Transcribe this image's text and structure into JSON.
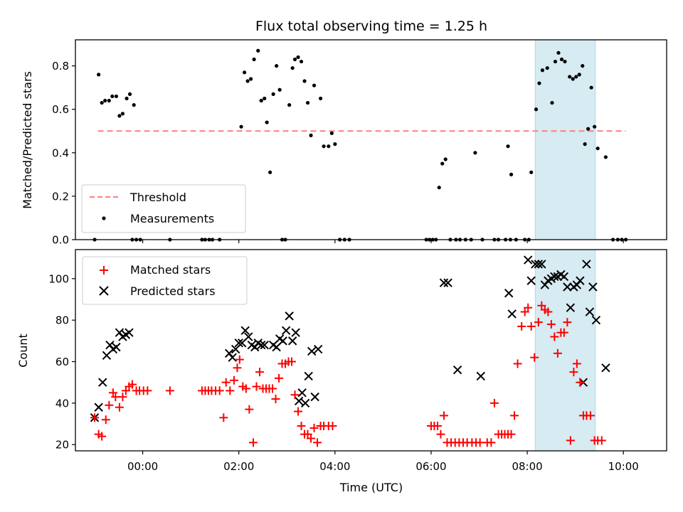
{
  "chart_data": [
    {
      "type": "scatter",
      "title": "Flux total observing time = 1.25 h",
      "ylabel": "Matched/Predicted stars",
      "xlabel": "",
      "ylim": [
        0,
        0.92
      ],
      "yticks": [
        "0.0",
        "0.2",
        "0.4",
        "0.6",
        "0.8"
      ],
      "threshold": {
        "name": "Threshold",
        "value": 0.5,
        "x_range": [
          -56,
          603
        ],
        "color": "#ff7f7f"
      },
      "shaded_span": {
        "x_range": [
          490,
          565
        ],
        "color": "#add8e6"
      },
      "legend": [
        "Threshold",
        "Measurements"
      ],
      "series": [
        {
          "name": "Measurements",
          "color": "#000000",
          "points": [
            [
              -55,
              0.76
            ],
            [
              -51,
              0.63
            ],
            [
              -47,
              0.64
            ],
            [
              -42,
              0.64
            ],
            [
              -38,
              0.66
            ],
            [
              -33,
              0.66
            ],
            [
              -29,
              0.57
            ],
            [
              -25,
              0.58
            ],
            [
              -20,
              0.65
            ],
            [
              -16,
              0.67
            ],
            [
              -11,
              0.62
            ],
            [
              123,
              0.52
            ],
            [
              127,
              0.77
            ],
            [
              131,
              0.73
            ],
            [
              135,
              0.74
            ],
            [
              139,
              0.83
            ],
            [
              144,
              0.87
            ],
            [
              148,
              0.64
            ],
            [
              152,
              0.65
            ],
            [
              155,
              0.54
            ],
            [
              159,
              0.31
            ],
            [
              163,
              0.67
            ],
            [
              167,
              0.8
            ],
            [
              171,
              0.69
            ],
            [
              183,
              0.62
            ],
            [
              187,
              0.79
            ],
            [
              190,
              0.83
            ],
            [
              194,
              0.84
            ],
            [
              198,
              0.82
            ],
            [
              202,
              0.73
            ],
            [
              206,
              0.63
            ],
            [
              210,
              0.48
            ],
            [
              214,
              0.71
            ],
            [
              222,
              0.65
            ],
            [
              226,
              0.43
            ],
            [
              232,
              0.43
            ],
            [
              236,
              0.49
            ],
            [
              240,
              0.44
            ],
            [
              370,
              0.24
            ],
            [
              374,
              0.35
            ],
            [
              378,
              0.37
            ],
            [
              415,
              0.4
            ],
            [
              456,
              0.43
            ],
            [
              460,
              0.3
            ],
            [
              485,
              0.31
            ],
            [
              491,
              0.6
            ],
            [
              495,
              0.72
            ],
            [
              499,
              0.78
            ],
            [
              505,
              0.79
            ],
            [
              511,
              0.63
            ],
            [
              515,
              0.82
            ],
            [
              519,
              0.86
            ],
            [
              523,
              0.83
            ],
            [
              527,
              0.82
            ],
            [
              533,
              0.75
            ],
            [
              537,
              0.74
            ],
            [
              541,
              0.75
            ],
            [
              545,
              0.76
            ],
            [
              549,
              0.8
            ],
            [
              552,
              0.44
            ],
            [
              556,
              0.51
            ],
            [
              560,
              0.7
            ],
            [
              564,
              0.52
            ],
            [
              568,
              0.42
            ],
            [
              578,
              0.38
            ],
            [
              -60,
              0
            ],
            [
              -13,
              0
            ],
            [
              -8,
              0
            ],
            [
              -3,
              0
            ],
            [
              34,
              0
            ],
            [
              74,
              0
            ],
            [
              78,
              0
            ],
            [
              83,
              0
            ],
            [
              87,
              0
            ],
            [
              96,
              0
            ],
            [
              174,
              0
            ],
            [
              178,
              0
            ],
            [
              246,
              0
            ],
            [
              252,
              0
            ],
            [
              258,
              0
            ],
            [
              354,
              0
            ],
            [
              358,
              0
            ],
            [
              362,
              0
            ],
            [
              366,
              0
            ],
            [
              384,
              0
            ],
            [
              391,
              0
            ],
            [
              396,
              0
            ],
            [
              403,
              0
            ],
            [
              410,
              0
            ],
            [
              424,
              0
            ],
            [
              439,
              0
            ],
            [
              444,
              0
            ],
            [
              453,
              0
            ],
            [
              459,
              0
            ],
            [
              466,
              0
            ],
            [
              477,
              0
            ],
            [
              482,
              0
            ],
            [
              587,
              0
            ],
            [
              593,
              0
            ],
            [
              598,
              0
            ],
            [
              603,
              0
            ]
          ]
        }
      ]
    },
    {
      "type": "scatter",
      "title": "",
      "ylabel": "Count",
      "xlabel": "Time (UTC)",
      "ylim": [
        17,
        114
      ],
      "yticks": [
        "20",
        "40",
        "60",
        "80",
        "100"
      ],
      "xlim": [
        -84,
        654
      ],
      "xticks": [
        "00:00",
        "02:00",
        "04:00",
        "06:00",
        "08:00",
        "10:00"
      ],
      "xtick_minutes": [
        0,
        120,
        240,
        360,
        480,
        600
      ],
      "shaded_span": {
        "x_range": [
          490,
          565
        ],
        "color": "#add8e6"
      },
      "legend": [
        "Matched stars",
        "Predicted stars"
      ],
      "series": [
        {
          "name": "Matched stars",
          "marker": "+",
          "color": "#ff0000",
          "points": [
            [
              -60,
              33
            ],
            [
              -55,
              25
            ],
            [
              -51,
              24
            ],
            [
              -46,
              32
            ],
            [
              -42,
              39
            ],
            [
              -37,
              45
            ],
            [
              -34,
              43
            ],
            [
              -29,
              38
            ],
            [
              -25,
              43
            ],
            [
              -21,
              46
            ],
            [
              -17,
              48
            ],
            [
              -13,
              49
            ],
            [
              -8,
              46
            ],
            [
              -4,
              46
            ],
            [
              1,
              46
            ],
            [
              6,
              46
            ],
            [
              34,
              46
            ],
            [
              74,
              46
            ],
            [
              78,
              46
            ],
            [
              82,
              46
            ],
            [
              86,
              46
            ],
            [
              91,
              46
            ],
            [
              96,
              46
            ],
            [
              101,
              33
            ],
            [
              104,
              50
            ],
            [
              109,
              46
            ],
            [
              114,
              51
            ],
            [
              118,
              57
            ],
            [
              121,
              61
            ],
            [
              125,
              48
            ],
            [
              129,
              47
            ],
            [
              133,
              37
            ],
            [
              138,
              21
            ],
            [
              142,
              48
            ],
            [
              146,
              55
            ],
            [
              150,
              47
            ],
            [
              154,
              47
            ],
            [
              158,
              47
            ],
            [
              162,
              47
            ],
            [
              166,
              42
            ],
            [
              170,
              52
            ],
            [
              174,
              59
            ],
            [
              178,
              59
            ],
            [
              182,
              60
            ],
            [
              186,
              60
            ],
            [
              190,
              44
            ],
            [
              194,
              36
            ],
            [
              198,
              29
            ],
            [
              202,
              25
            ],
            [
              206,
              25
            ],
            [
              210,
              23
            ],
            [
              214,
              28
            ],
            [
              218,
              21
            ],
            [
              222,
              29
            ],
            [
              226,
              29
            ],
            [
              232,
              29
            ],
            [
              237,
              29
            ],
            [
              360,
              29
            ],
            [
              364,
              29
            ],
            [
              368,
              29
            ],
            [
              372,
              25
            ],
            [
              376,
              34
            ],
            [
              380,
              21
            ],
            [
              385,
              21
            ],
            [
              390,
              21
            ],
            [
              395,
              21
            ],
            [
              400,
              21
            ],
            [
              405,
              21
            ],
            [
              411,
              21
            ],
            [
              416,
              21
            ],
            [
              421,
              21
            ],
            [
              430,
              21
            ],
            [
              435,
              21
            ],
            [
              439,
              40
            ],
            [
              444,
              25
            ],
            [
              448,
              25
            ],
            [
              452,
              25
            ],
            [
              456,
              25
            ],
            [
              460,
              25
            ],
            [
              464,
              34
            ],
            [
              468,
              59
            ],
            [
              473,
              77
            ],
            [
              477,
              84
            ],
            [
              481,
              86
            ],
            [
              485,
              77
            ],
            [
              489,
              62
            ],
            [
              494,
              79
            ],
            [
              498,
              87
            ],
            [
              502,
              85
            ],
            [
              506,
              84
            ],
            [
              510,
              78
            ],
            [
              514,
              72
            ],
            [
              518,
              64
            ],
            [
              522,
              74
            ],
            [
              526,
              74
            ],
            [
              530,
              79
            ],
            [
              534,
              22
            ],
            [
              538,
              55
            ],
            [
              542,
              59
            ],
            [
              546,
              50
            ],
            [
              550,
              34
            ],
            [
              554,
              34
            ],
            [
              559,
              34
            ],
            [
              564,
              22
            ],
            [
              568,
              22
            ],
            [
              573,
              22
            ]
          ]
        },
        {
          "name": "Predicted stars",
          "marker": "x",
          "color": "#000000",
          "points": [
            [
              -60,
              33
            ],
            [
              -55,
              38
            ],
            [
              -50,
              50
            ],
            [
              -45,
              63
            ],
            [
              -41,
              68
            ],
            [
              -37,
              66
            ],
            [
              -33,
              67
            ],
            [
              -29,
              74
            ],
            [
              -25,
              72
            ],
            [
              -21,
              73
            ],
            [
              -17,
              74
            ],
            [
              108,
              64
            ],
            [
              112,
              62
            ],
            [
              116,
              66
            ],
            [
              120,
              69
            ],
            [
              124,
              69
            ],
            [
              128,
              75
            ],
            [
              132,
              72
            ],
            [
              136,
              68
            ],
            [
              140,
              67
            ],
            [
              144,
              69
            ],
            [
              148,
              68
            ],
            [
              152,
              68
            ],
            [
              163,
              68
            ],
            [
              167,
              67
            ],
            [
              171,
              71
            ],
            [
              175,
              70
            ],
            [
              179,
              75
            ],
            [
              183,
              82
            ],
            [
              187,
              70
            ],
            [
              191,
              74
            ],
            [
              195,
              41
            ],
            [
              199,
              45
            ],
            [
              203,
              40
            ],
            [
              207,
              53
            ],
            [
              211,
              65
            ],
            [
              215,
              43
            ],
            [
              219,
              66
            ],
            [
              376,
              98
            ],
            [
              381,
              98
            ],
            [
              393,
              56
            ],
            [
              422,
              53
            ],
            [
              457,
              93
            ],
            [
              461,
              83
            ],
            [
              481,
              109
            ],
            [
              485,
              99
            ],
            [
              490,
              107
            ],
            [
              494,
              107
            ],
            [
              498,
              107
            ],
            [
              502,
              97
            ],
            [
              506,
              99
            ],
            [
              510,
              100
            ],
            [
              514,
              101
            ],
            [
              518,
              101
            ],
            [
              522,
              102
            ],
            [
              526,
              101
            ],
            [
              530,
              96
            ],
            [
              534,
              86
            ],
            [
              538,
              96
            ],
            [
              542,
              97
            ],
            [
              546,
              99
            ],
            [
              550,
              50
            ],
            [
              554,
              107
            ],
            [
              558,
              84
            ],
            [
              562,
              96
            ],
            [
              566,
              80
            ],
            [
              578,
              57
            ]
          ]
        }
      ]
    }
  ]
}
